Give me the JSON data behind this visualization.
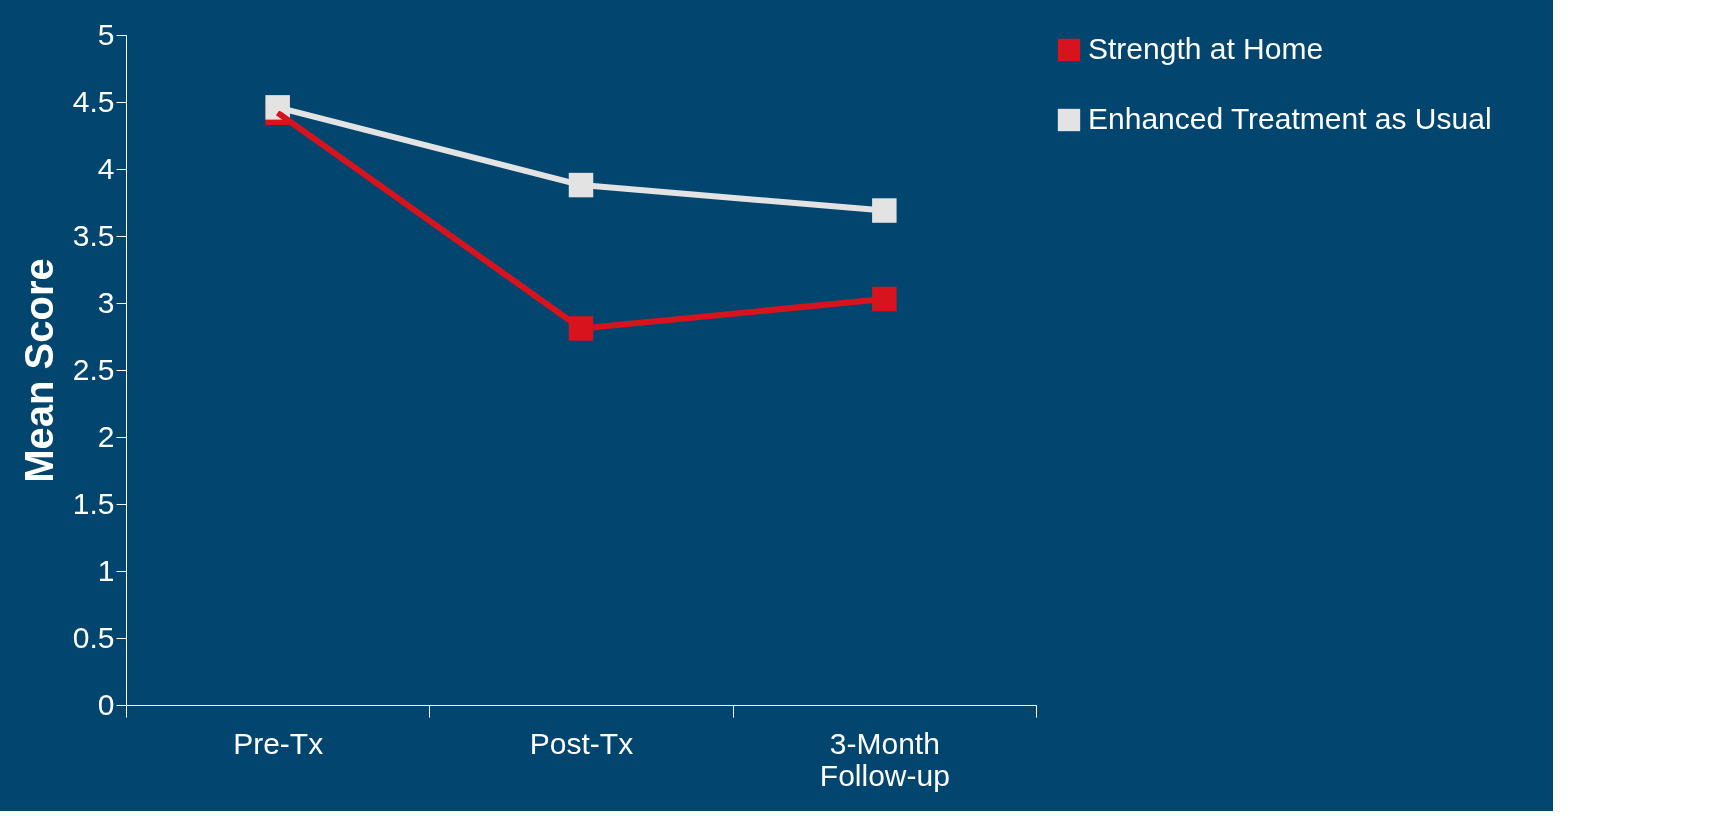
{
  "chart_data": {
    "type": "line",
    "ylabel": "Mean Score",
    "categories": [
      "Pre-Tx",
      "Post-Tx",
      "3-Month Follow-up"
    ],
    "series": [
      {
        "name": "Strength at Home",
        "color": "#d7141e",
        "values": [
          4.42,
          2.81,
          3.03
        ]
      },
      {
        "name": "Enhanced Treatment as Usual",
        "color": "#e3e3e3",
        "values": [
          4.46,
          3.88,
          3.69
        ]
      }
    ],
    "ylim": [
      0,
      5
    ],
    "yticks": [
      0,
      0.5,
      1,
      1.5,
      2,
      2.5,
      3,
      3.5,
      4,
      4.5,
      5
    ],
    "grid": false,
    "legend": "right",
    "marker": "square",
    "line_style": "solid"
  }
}
